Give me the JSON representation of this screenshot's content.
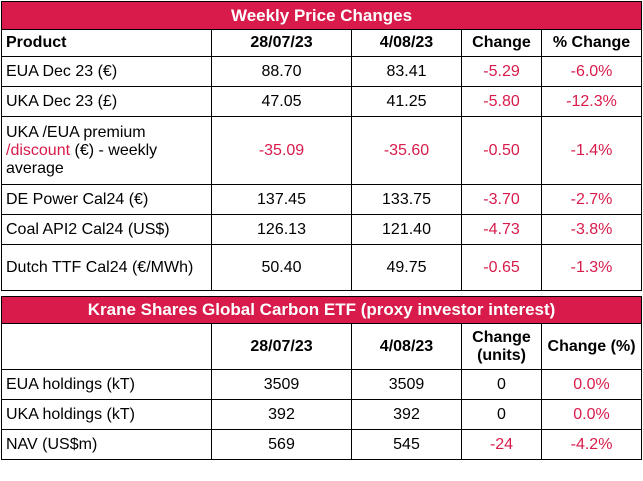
{
  "weekly": {
    "title": "Weekly Price Changes",
    "headers": {
      "product": "Product",
      "d1": "28/07/23",
      "d2": "4/08/23",
      "change": "Change",
      "pct": "% Change"
    },
    "rows": [
      {
        "label": "EUA Dec 23 (€)",
        "d1": "88.70",
        "d2": "83.41",
        "change": "-5.29",
        "pct": "-6.0%"
      },
      {
        "label": "UKA Dec 23 (£)",
        "d1": "47.05",
        "d2": "41.25",
        "change": "-5.80",
        "pct": "-12.3%"
      },
      {
        "label_a": "UKA /EUA premium ",
        "label_b": "/discount",
        "label_c": " (€) - weekly average",
        "d1": "-35.09",
        "d2": "-35.60",
        "change": "-0.50",
        "pct": "-1.4%"
      },
      {
        "label": "DE Power Cal24 (€)",
        "d1": "137.45",
        "d2": "133.75",
        "change": "-3.70",
        "pct": "-2.7%"
      },
      {
        "label": "Coal API2 Cal24 (US$)",
        "d1": "126.13",
        "d2": "121.40",
        "change": "-4.73",
        "pct": "-3.8%"
      },
      {
        "label": "Dutch TTF Cal24 (€/MWh)",
        "d1": "50.40",
        "d2": "49.75",
        "change": "-0.65",
        "pct": "-1.3%"
      }
    ]
  },
  "krane": {
    "title": "Krane Shares Global Carbon ETF (proxy investor interest)",
    "headers": {
      "d1": "28/07/23",
      "d2": "4/08/23",
      "change": "Change (units)",
      "pct": "Change (%)"
    },
    "rows": [
      {
        "label": "EUA holdings (kT)",
        "d1": "3509",
        "d2": "3509",
        "change": "0",
        "pct": "0.0%"
      },
      {
        "label": "UKA holdings (kT)",
        "d1": "392",
        "d2": "392",
        "change": "0",
        "pct": "0.0%"
      },
      {
        "label": "NAV (US$m)",
        "d1": "569",
        "d2": "545",
        "change": "-24",
        "pct": "-4.2%"
      }
    ]
  },
  "colors": {
    "accent": "#d81b4a",
    "negative": "#d81b4a"
  }
}
